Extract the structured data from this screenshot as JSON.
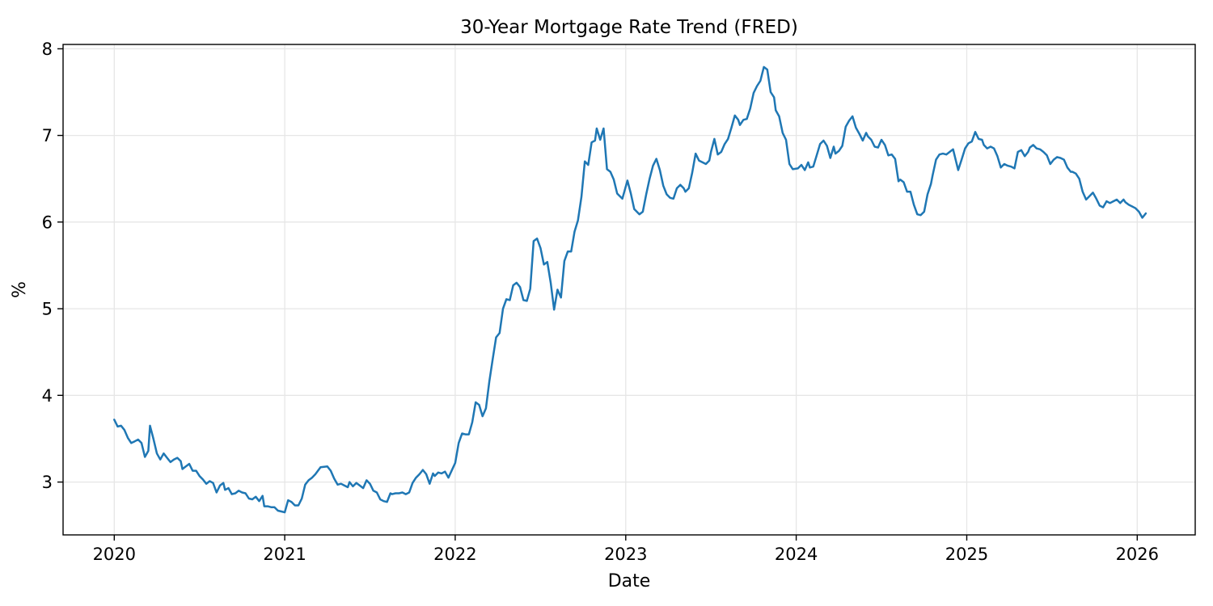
{
  "chart_data": {
    "type": "line",
    "title": "30-Year Mortgage Rate Trend (FRED)",
    "xlabel": "Date",
    "ylabel": "%",
    "x_ticks": [
      2020,
      2021,
      2022,
      2023,
      2024,
      2025,
      2026
    ],
    "y_ticks": [
      3,
      4,
      5,
      6,
      7,
      8
    ],
    "xlim": [
      2019.7,
      2026.34
    ],
    "ylim": [
      2.39,
      8.05
    ],
    "grid": true,
    "legend": "none",
    "line_color": "#1f77b4",
    "grid_color": "#e6e6e6",
    "axis_color": "#000000",
    "background": "#ffffff",
    "points": [
      [
        2020.0,
        3.72
      ],
      [
        2020.02,
        3.64
      ],
      [
        2020.04,
        3.65
      ],
      [
        2020.06,
        3.6
      ],
      [
        2020.08,
        3.51
      ],
      [
        2020.1,
        3.45
      ],
      [
        2020.12,
        3.47
      ],
      [
        2020.14,
        3.49
      ],
      [
        2020.16,
        3.45
      ],
      [
        2020.18,
        3.29
      ],
      [
        2020.2,
        3.36
      ],
      [
        2020.21,
        3.65
      ],
      [
        2020.23,
        3.5
      ],
      [
        2020.25,
        3.33
      ],
      [
        2020.27,
        3.26
      ],
      [
        2020.29,
        3.33
      ],
      [
        2020.31,
        3.28
      ],
      [
        2020.33,
        3.23
      ],
      [
        2020.35,
        3.26
      ],
      [
        2020.37,
        3.28
      ],
      [
        2020.39,
        3.24
      ],
      [
        2020.4,
        3.15
      ],
      [
        2020.42,
        3.18
      ],
      [
        2020.44,
        3.21
      ],
      [
        2020.46,
        3.13
      ],
      [
        2020.48,
        3.13
      ],
      [
        2020.5,
        3.07
      ],
      [
        2020.52,
        3.03
      ],
      [
        2020.54,
        2.98
      ],
      [
        2020.56,
        3.01
      ],
      [
        2020.58,
        2.99
      ],
      [
        2020.6,
        2.88
      ],
      [
        2020.62,
        2.96
      ],
      [
        2020.64,
        2.99
      ],
      [
        2020.65,
        2.91
      ],
      [
        2020.67,
        2.93
      ],
      [
        2020.69,
        2.86
      ],
      [
        2020.71,
        2.87
      ],
      [
        2020.73,
        2.9
      ],
      [
        2020.75,
        2.88
      ],
      [
        2020.77,
        2.87
      ],
      [
        2020.79,
        2.81
      ],
      [
        2020.81,
        2.8
      ],
      [
        2020.83,
        2.83
      ],
      [
        2020.85,
        2.78
      ],
      [
        2020.87,
        2.84
      ],
      [
        2020.88,
        2.72
      ],
      [
        2020.9,
        2.72
      ],
      [
        2020.92,
        2.71
      ],
      [
        2020.94,
        2.71
      ],
      [
        2020.96,
        2.67
      ],
      [
        2020.98,
        2.66
      ],
      [
        2021.0,
        2.65
      ],
      [
        2021.02,
        2.79
      ],
      [
        2021.04,
        2.77
      ],
      [
        2021.06,
        2.73
      ],
      [
        2021.08,
        2.73
      ],
      [
        2021.1,
        2.81
      ],
      [
        2021.12,
        2.97
      ],
      [
        2021.14,
        3.02
      ],
      [
        2021.16,
        3.05
      ],
      [
        2021.18,
        3.09
      ],
      [
        2021.21,
        3.17
      ],
      [
        2021.25,
        3.18
      ],
      [
        2021.27,
        3.13
      ],
      [
        2021.29,
        3.04
      ],
      [
        2021.31,
        2.97
      ],
      [
        2021.33,
        2.98
      ],
      [
        2021.35,
        2.96
      ],
      [
        2021.37,
        2.94
      ],
      [
        2021.38,
        3.0
      ],
      [
        2021.4,
        2.95
      ],
      [
        2021.42,
        2.99
      ],
      [
        2021.44,
        2.96
      ],
      [
        2021.46,
        2.93
      ],
      [
        2021.48,
        3.02
      ],
      [
        2021.5,
        2.98
      ],
      [
        2021.52,
        2.9
      ],
      [
        2021.54,
        2.88
      ],
      [
        2021.56,
        2.8
      ],
      [
        2021.58,
        2.78
      ],
      [
        2021.6,
        2.77
      ],
      [
        2021.62,
        2.87
      ],
      [
        2021.63,
        2.86
      ],
      [
        2021.65,
        2.87
      ],
      [
        2021.67,
        2.87
      ],
      [
        2021.69,
        2.88
      ],
      [
        2021.71,
        2.86
      ],
      [
        2021.73,
        2.88
      ],
      [
        2021.75,
        2.99
      ],
      [
        2021.77,
        3.05
      ],
      [
        2021.79,
        3.09
      ],
      [
        2021.81,
        3.14
      ],
      [
        2021.83,
        3.09
      ],
      [
        2021.85,
        2.98
      ],
      [
        2021.87,
        3.1
      ],
      [
        2021.88,
        3.07
      ],
      [
        2021.9,
        3.11
      ],
      [
        2021.92,
        3.1
      ],
      [
        2021.94,
        3.12
      ],
      [
        2021.96,
        3.05
      ],
      [
        2022.0,
        3.22
      ],
      [
        2022.02,
        3.45
      ],
      [
        2022.04,
        3.56
      ],
      [
        2022.06,
        3.55
      ],
      [
        2022.08,
        3.55
      ],
      [
        2022.1,
        3.69
      ],
      [
        2022.12,
        3.92
      ],
      [
        2022.14,
        3.89
      ],
      [
        2022.16,
        3.76
      ],
      [
        2022.18,
        3.85
      ],
      [
        2022.2,
        4.16
      ],
      [
        2022.22,
        4.42
      ],
      [
        2022.24,
        4.67
      ],
      [
        2022.26,
        4.72
      ],
      [
        2022.28,
        5.0
      ],
      [
        2022.3,
        5.11
      ],
      [
        2022.32,
        5.1
      ],
      [
        2022.34,
        5.27
      ],
      [
        2022.36,
        5.3
      ],
      [
        2022.38,
        5.25
      ],
      [
        2022.4,
        5.1
      ],
      [
        2022.42,
        5.09
      ],
      [
        2022.44,
        5.23
      ],
      [
        2022.46,
        5.78
      ],
      [
        2022.48,
        5.81
      ],
      [
        2022.5,
        5.7
      ],
      [
        2022.52,
        5.51
      ],
      [
        2022.54,
        5.54
      ],
      [
        2022.56,
        5.3
      ],
      [
        2022.58,
        4.99
      ],
      [
        2022.6,
        5.22
      ],
      [
        2022.62,
        5.13
      ],
      [
        2022.64,
        5.55
      ],
      [
        2022.66,
        5.66
      ],
      [
        2022.68,
        5.66
      ],
      [
        2022.7,
        5.89
      ],
      [
        2022.72,
        6.02
      ],
      [
        2022.74,
        6.29
      ],
      [
        2022.76,
        6.7
      ],
      [
        2022.78,
        6.66
      ],
      [
        2022.8,
        6.92
      ],
      [
        2022.82,
        6.94
      ],
      [
        2022.83,
        7.08
      ],
      [
        2022.85,
        6.95
      ],
      [
        2022.87,
        7.08
      ],
      [
        2022.89,
        6.61
      ],
      [
        2022.91,
        6.58
      ],
      [
        2022.93,
        6.49
      ],
      [
        2022.95,
        6.33
      ],
      [
        2022.96,
        6.31
      ],
      [
        2022.98,
        6.27
      ],
      [
        2023.01,
        6.48
      ],
      [
        2023.03,
        6.33
      ],
      [
        2023.05,
        6.15
      ],
      [
        2023.06,
        6.13
      ],
      [
        2023.08,
        6.09
      ],
      [
        2023.1,
        6.12
      ],
      [
        2023.12,
        6.32
      ],
      [
        2023.14,
        6.5
      ],
      [
        2023.16,
        6.65
      ],
      [
        2023.18,
        6.73
      ],
      [
        2023.2,
        6.6
      ],
      [
        2023.22,
        6.42
      ],
      [
        2023.24,
        6.32
      ],
      [
        2023.26,
        6.28
      ],
      [
        2023.28,
        6.27
      ],
      [
        2023.3,
        6.39
      ],
      [
        2023.32,
        6.43
      ],
      [
        2023.34,
        6.39
      ],
      [
        2023.35,
        6.35
      ],
      [
        2023.37,
        6.39
      ],
      [
        2023.39,
        6.57
      ],
      [
        2023.41,
        6.79
      ],
      [
        2023.43,
        6.71
      ],
      [
        2023.45,
        6.69
      ],
      [
        2023.47,
        6.67
      ],
      [
        2023.49,
        6.71
      ],
      [
        2023.5,
        6.81
      ],
      [
        2023.52,
        6.96
      ],
      [
        2023.54,
        6.78
      ],
      [
        2023.56,
        6.81
      ],
      [
        2023.58,
        6.9
      ],
      [
        2023.6,
        6.96
      ],
      [
        2023.62,
        7.09
      ],
      [
        2023.64,
        7.23
      ],
      [
        2023.66,
        7.18
      ],
      [
        2023.67,
        7.12
      ],
      [
        2023.69,
        7.18
      ],
      [
        2023.71,
        7.19
      ],
      [
        2023.73,
        7.31
      ],
      [
        2023.75,
        7.49
      ],
      [
        2023.77,
        7.57
      ],
      [
        2023.79,
        7.63
      ],
      [
        2023.81,
        7.79
      ],
      [
        2023.83,
        7.76
      ],
      [
        2023.85,
        7.5
      ],
      [
        2023.87,
        7.44
      ],
      [
        2023.88,
        7.29
      ],
      [
        2023.9,
        7.22
      ],
      [
        2023.92,
        7.03
      ],
      [
        2023.94,
        6.95
      ],
      [
        2023.96,
        6.67
      ],
      [
        2023.98,
        6.61
      ],
      [
        2024.01,
        6.62
      ],
      [
        2024.03,
        6.66
      ],
      [
        2024.05,
        6.6
      ],
      [
        2024.07,
        6.69
      ],
      [
        2024.08,
        6.63
      ],
      [
        2024.1,
        6.64
      ],
      [
        2024.12,
        6.77
      ],
      [
        2024.14,
        6.9
      ],
      [
        2024.16,
        6.94
      ],
      [
        2024.18,
        6.88
      ],
      [
        2024.2,
        6.74
      ],
      [
        2024.22,
        6.87
      ],
      [
        2024.23,
        6.79
      ],
      [
        2024.25,
        6.82
      ],
      [
        2024.27,
        6.88
      ],
      [
        2024.29,
        7.1
      ],
      [
        2024.31,
        7.17
      ],
      [
        2024.33,
        7.22
      ],
      [
        2024.35,
        7.09
      ],
      [
        2024.37,
        7.02
      ],
      [
        2024.39,
        6.94
      ],
      [
        2024.41,
        7.03
      ],
      [
        2024.42,
        6.99
      ],
      [
        2024.44,
        6.95
      ],
      [
        2024.46,
        6.87
      ],
      [
        2024.48,
        6.86
      ],
      [
        2024.5,
        6.95
      ],
      [
        2024.52,
        6.89
      ],
      [
        2024.54,
        6.77
      ],
      [
        2024.56,
        6.78
      ],
      [
        2024.58,
        6.73
      ],
      [
        2024.6,
        6.47
      ],
      [
        2024.61,
        6.49
      ],
      [
        2024.63,
        6.46
      ],
      [
        2024.65,
        6.35
      ],
      [
        2024.67,
        6.35
      ],
      [
        2024.69,
        6.2
      ],
      [
        2024.71,
        6.09
      ],
      [
        2024.73,
        6.08
      ],
      [
        2024.75,
        6.12
      ],
      [
        2024.77,
        6.32
      ],
      [
        2024.79,
        6.44
      ],
      [
        2024.8,
        6.54
      ],
      [
        2024.82,
        6.72
      ],
      [
        2024.84,
        6.78
      ],
      [
        2024.86,
        6.79
      ],
      [
        2024.88,
        6.78
      ],
      [
        2024.9,
        6.81
      ],
      [
        2024.92,
        6.84
      ],
      [
        2024.95,
        6.6
      ],
      [
        2024.97,
        6.72
      ],
      [
        2024.99,
        6.85
      ],
      [
        2025.01,
        6.91
      ],
      [
        2025.03,
        6.93
      ],
      [
        2025.05,
        7.04
      ],
      [
        2025.07,
        6.96
      ],
      [
        2025.09,
        6.95
      ],
      [
        2025.1,
        6.89
      ],
      [
        2025.12,
        6.85
      ],
      [
        2025.14,
        6.87
      ],
      [
        2025.16,
        6.85
      ],
      [
        2025.18,
        6.76
      ],
      [
        2025.2,
        6.63
      ],
      [
        2025.22,
        6.67
      ],
      [
        2025.24,
        6.65
      ],
      [
        2025.26,
        6.64
      ],
      [
        2025.28,
        6.62
      ],
      [
        2025.3,
        6.81
      ],
      [
        2025.32,
        6.83
      ],
      [
        2025.34,
        6.76
      ],
      [
        2025.36,
        6.81
      ],
      [
        2025.37,
        6.86
      ],
      [
        2025.39,
        6.89
      ],
      [
        2025.41,
        6.85
      ],
      [
        2025.43,
        6.84
      ],
      [
        2025.45,
        6.81
      ],
      [
        2025.47,
        6.77
      ],
      [
        2025.49,
        6.67
      ],
      [
        2025.51,
        6.72
      ],
      [
        2025.53,
        6.75
      ],
      [
        2025.55,
        6.74
      ],
      [
        2025.57,
        6.72
      ],
      [
        2025.59,
        6.63
      ],
      [
        2025.61,
        6.58
      ],
      [
        2025.62,
        6.58
      ],
      [
        2025.64,
        6.56
      ],
      [
        2025.66,
        6.5
      ],
      [
        2025.68,
        6.35
      ],
      [
        2025.7,
        6.26
      ],
      [
        2025.72,
        6.3
      ],
      [
        2025.74,
        6.34
      ],
      [
        2025.76,
        6.27
      ],
      [
        2025.78,
        6.19
      ],
      [
        2025.8,
        6.17
      ],
      [
        2025.82,
        6.24
      ],
      [
        2025.84,
        6.22
      ],
      [
        2025.86,
        6.24
      ],
      [
        2025.88,
        6.26
      ],
      [
        2025.9,
        6.22
      ],
      [
        2025.92,
        6.26
      ],
      [
        2025.93,
        6.23
      ],
      [
        2025.95,
        6.2
      ],
      [
        2025.97,
        6.18
      ],
      [
        2025.99,
        6.16
      ],
      [
        2026.01,
        6.12
      ],
      [
        2026.03,
        6.05
      ],
      [
        2026.05,
        6.1
      ]
    ]
  }
}
